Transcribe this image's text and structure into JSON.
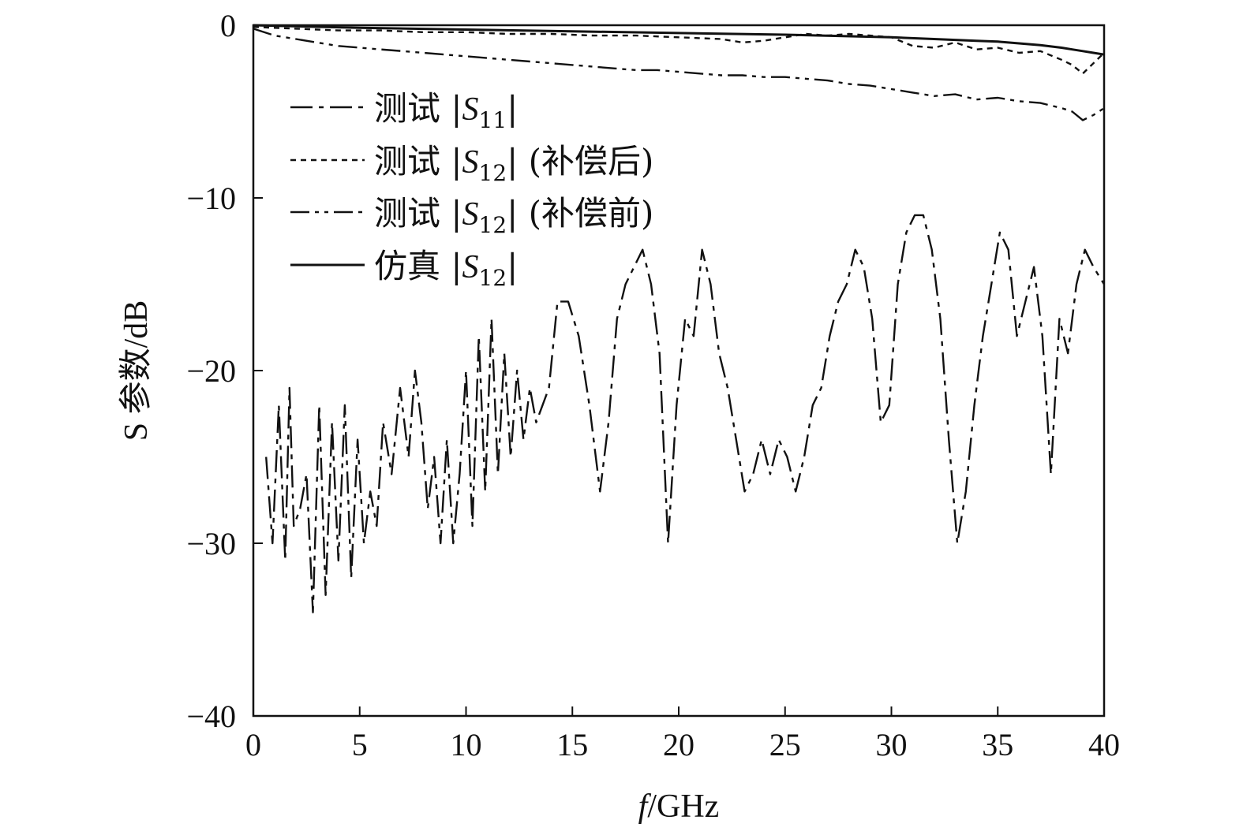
{
  "chart_data": {
    "type": "line",
    "title": "",
    "xlabel_italic": "f",
    "xlabel_rest": "/GHz",
    "ylabel": "S 参数/dB",
    "xlim": [
      0,
      40
    ],
    "ylim": [
      -40,
      0
    ],
    "xticks": [
      0,
      5,
      10,
      15,
      20,
      25,
      30,
      35,
      40
    ],
    "yticks": [
      0,
      -10,
      -20,
      -30,
      -40
    ],
    "xtick_labels": [
      "0",
      "5",
      "10",
      "15",
      "20",
      "25",
      "30",
      "35",
      "40"
    ],
    "ytick_labels": [
      "0",
      "−10",
      "−20",
      "−30",
      "−40"
    ],
    "grid": false,
    "legend_position": "upper-left",
    "series": [
      {
        "legend_prefix": "测试 |",
        "legend_sym": "S",
        "legend_sub": "11",
        "legend_suffix": "|",
        "dash": "28 8 6 8",
        "x": [
          0.6,
          0.9,
          1.2,
          1.5,
          1.7,
          1.9,
          2.2,
          2.5,
          2.8,
          3.1,
          3.4,
          3.7,
          4.0,
          4.3,
          4.6,
          4.9,
          5.2,
          5.5,
          5.8,
          6.1,
          6.5,
          6.9,
          7.3,
          7.6,
          7.9,
          8.2,
          8.5,
          8.8,
          9.1,
          9.4,
          9.7,
          10.0,
          10.3,
          10.6,
          10.9,
          11.2,
          11.5,
          11.8,
          12.1,
          12.4,
          12.7,
          13.0,
          13.3,
          13.6,
          13.9,
          14.3,
          14.8,
          15.3,
          15.8,
          16.3,
          16.7,
          17.1,
          17.5,
          17.9,
          18.3,
          18.7,
          19.1,
          19.5,
          19.9,
          20.3,
          20.7,
          21.1,
          21.5,
          21.9,
          22.3,
          22.7,
          23.1,
          23.5,
          23.9,
          24.3,
          24.7,
          25.1,
          25.5,
          25.9,
          26.3,
          26.7,
          27.1,
          27.5,
          27.9,
          28.3,
          28.7,
          29.1,
          29.5,
          29.9,
          30.3,
          30.7,
          31.1,
          31.5,
          31.9,
          32.3,
          32.7,
          33.1,
          33.5,
          33.9,
          34.3,
          34.7,
          35.1,
          35.5,
          35.9,
          36.3,
          36.7,
          37.1,
          37.5,
          37.9,
          38.3,
          38.7,
          39.1,
          39.5,
          40.0
        ],
        "y": [
          -25,
          -30,
          -22,
          -31,
          -21,
          -29,
          -28,
          -26,
          -34,
          -22,
          -33,
          -23,
          -31,
          -22,
          -32,
          -24,
          -30,
          -27,
          -29,
          -23,
          -26,
          -21,
          -25,
          -20,
          -23,
          -28,
          -25,
          -30,
          -24,
          -30,
          -26,
          -20,
          -29,
          -18,
          -27,
          -17,
          -26,
          -19,
          -25,
          -20,
          -24,
          -21,
          -23,
          -22,
          -21,
          -16,
          -16,
          -18,
          -22,
          -27,
          -23,
          -17,
          -15,
          -14,
          -13,
          -15,
          -19,
          -30,
          -22,
          -17,
          -18,
          -13,
          -15,
          -19,
          -21,
          -24,
          -27,
          -26,
          -24,
          -26,
          -24,
          -25,
          -27,
          -25,
          -22,
          -21,
          -18,
          -16,
          -15,
          -13,
          -14,
          -17,
          -23,
          -22,
          -15,
          -12,
          -11,
          -11,
          -13,
          -17,
          -24,
          -30,
          -27,
          -22,
          -18,
          -15,
          -12,
          -13,
          -18,
          -16,
          -14,
          -18,
          -26,
          -17,
          -19,
          -15,
          -13,
          -14,
          -15
        ]
      },
      {
        "legend_prefix": "测试 |",
        "legend_sym": "S",
        "legend_sub": "12",
        "legend_suffix": "| (补偿后)",
        "dash": "7 6",
        "x": [
          0,
          2,
          4,
          6,
          8,
          10,
          12,
          14,
          16,
          18,
          20,
          22,
          23,
          24,
          25,
          26,
          27,
          28,
          29,
          30,
          31,
          32,
          33,
          34,
          35,
          36,
          37,
          38,
          38.5,
          39,
          39.5,
          40
        ],
        "y": [
          -0.1,
          -0.2,
          -0.3,
          -0.3,
          -0.4,
          -0.4,
          -0.5,
          -0.5,
          -0.6,
          -0.6,
          -0.7,
          -0.8,
          -1.0,
          -0.9,
          -0.7,
          -0.5,
          -0.6,
          -0.5,
          -0.6,
          -0.7,
          -1.2,
          -1.3,
          -1.0,
          -1.4,
          -1.3,
          -1.6,
          -1.5,
          -2.0,
          -2.3,
          -2.8,
          -2.2,
          -1.6
        ]
      },
      {
        "legend_prefix": "测试 |",
        "legend_sym": "S",
        "legend_sub": "12",
        "legend_suffix": "| (补偿前)",
        "dash": "24 7 5 7 5 7",
        "x": [
          0,
          1,
          2,
          3,
          4,
          5,
          6,
          7,
          8,
          9,
          10,
          11,
          12,
          13,
          14,
          15,
          16,
          17,
          18,
          19,
          20,
          21,
          22,
          23,
          24,
          25,
          26,
          27,
          28,
          29,
          30,
          31,
          32,
          33,
          34,
          35,
          36,
          37,
          38,
          38.5,
          39,
          39.5,
          40
        ],
        "y": [
          -0.2,
          -0.6,
          -0.8,
          -1.0,
          -1.2,
          -1.3,
          -1.4,
          -1.5,
          -1.6,
          -1.7,
          -1.8,
          -1.9,
          -2.0,
          -2.1,
          -2.2,
          -2.3,
          -2.4,
          -2.5,
          -2.6,
          -2.6,
          -2.7,
          -2.8,
          -2.9,
          -2.9,
          -3.0,
          -3.0,
          -3.1,
          -3.2,
          -3.4,
          -3.5,
          -3.7,
          -3.9,
          -4.1,
          -4.0,
          -4.3,
          -4.2,
          -4.4,
          -4.5,
          -4.8,
          -5.0,
          -5.5,
          -5.2,
          -4.8
        ]
      },
      {
        "legend_prefix": "仿真 |",
        "legend_sym": "S",
        "legend_sub": "12",
        "legend_suffix": "|",
        "dash": "",
        "x": [
          0,
          5,
          10,
          15,
          20,
          25,
          30,
          32,
          34,
          35,
          36,
          37,
          38,
          38.5,
          39,
          39.5,
          40
        ],
        "y": [
          0,
          -0.15,
          -0.25,
          -0.35,
          -0.45,
          -0.55,
          -0.7,
          -0.8,
          -0.9,
          -0.95,
          -1.05,
          -1.15,
          -1.3,
          -1.4,
          -1.5,
          -1.6,
          -1.7
        ]
      }
    ]
  }
}
